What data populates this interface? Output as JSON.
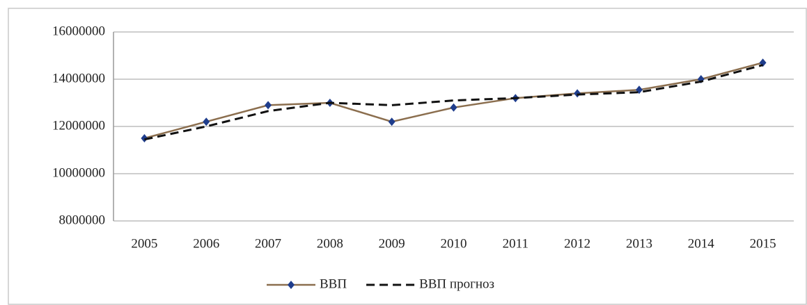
{
  "chart_data": {
    "type": "line",
    "categories": [
      "2005",
      "2006",
      "2007",
      "2008",
      "2009",
      "2010",
      "2011",
      "2012",
      "2013",
      "2014",
      "2015"
    ],
    "series": [
      {
        "name": "ВВП",
        "color": "#8b6e4e",
        "marker_color": "#1f3d8c",
        "dash": false,
        "values": [
          11500000,
          12200000,
          12900000,
          13000000,
          12200000,
          12800000,
          13200000,
          13400000,
          13550000,
          14000000,
          14700000
        ]
      },
      {
        "name": "ВВП прогноз",
        "color": "#111111",
        "dash": true,
        "values": [
          11450000,
          12000000,
          12650000,
          13000000,
          12900000,
          13100000,
          13200000,
          13350000,
          13450000,
          13900000,
          14600000
        ]
      }
    ],
    "ylim": [
      8000000,
      16000000
    ],
    "yticks": [
      8000000,
      10000000,
      12000000,
      14000000,
      16000000
    ],
    "grid": true,
    "legend": "bottom"
  }
}
